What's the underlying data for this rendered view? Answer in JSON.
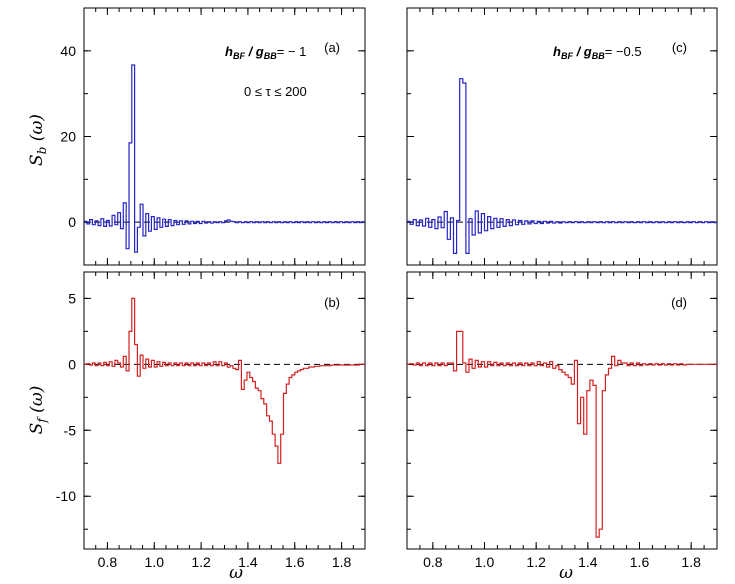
{
  "chart_data": [
    {
      "type": "line",
      "panel": "(a)",
      "annotation": {
        "param": "h",
        "param_sub": "BF",
        "ratio": "g",
        "ratio_sub": "BB",
        "value": "= − 1",
        "range": "0  ≤ τ  ≤ 200"
      },
      "ylabel": {
        "main": "S",
        "sub": "b",
        "arg": "(ω)"
      },
      "xlim": [
        0.7,
        1.9
      ],
      "ylim": [
        -10,
        50
      ],
      "yticks": [
        0,
        20,
        40
      ],
      "xticks": [],
      "color": "#2424c8",
      "step": 0.012,
      "x_start": 0.7,
      "values": [
        0.2,
        -0.4,
        0.6,
        -0.6,
        0.3,
        -0.8,
        0.8,
        -1.0,
        0.4,
        -0.9,
        1.6,
        -0.6,
        2.2,
        -1.5,
        4.5,
        -6.2,
        18.5,
        36.7,
        -7.0,
        -1.2,
        4.2,
        -3.2,
        2.0,
        -2.1,
        1.3,
        -1.7,
        1.0,
        -1.2,
        0.7,
        -1.0,
        0.6,
        -0.8,
        0.4,
        -0.6,
        0.3,
        -0.5,
        0.3,
        -0.4,
        0.2,
        -0.3,
        0.2,
        -0.3,
        0.2,
        -0.2,
        0.1,
        -0.2,
        0.1,
        -0.1,
        0.1,
        -0.1,
        0.3,
        0.5,
        0.2,
        0.1,
        -0.1,
        0.1,
        -0.1,
        0.1,
        -0.1,
        0.1,
        -0.1,
        0.1,
        -0.1,
        0.1,
        -0.1,
        0.1,
        -0.1,
        0.1,
        -0.1,
        0.1,
        -0.1,
        0.1,
        -0.1,
        0.1,
        -0.1,
        0.1,
        -0.1,
        0.1,
        -0.1,
        0.1,
        -0.1,
        0.1,
        -0.1,
        0.1,
        -0.1,
        0.1,
        -0.1,
        0.1,
        -0.1,
        0.1,
        -0.1,
        0.1,
        -0.1,
        0.1,
        -0.1,
        0.1,
        -0.1,
        0.1,
        -0.1,
        0.1
      ]
    },
    {
      "type": "line",
      "panel": "(c)",
      "annotation": {
        "param": "h",
        "param_sub": "BF",
        "ratio": "g",
        "ratio_sub": "BB",
        "value": "= −0.5"
      },
      "xlim": [
        0.7,
        1.9
      ],
      "ylim": [
        -10,
        50
      ],
      "yticks": [
        0,
        20,
        40
      ],
      "xticks": [],
      "color": "#2424c8",
      "step": 0.012,
      "x_start": 0.7,
      "values": [
        0.2,
        -0.5,
        0.6,
        -0.8,
        0.5,
        -0.9,
        0.9,
        -1.2,
        0.6,
        -1.5,
        1.2,
        -1.3,
        2.5,
        -4.0,
        1.0,
        -7.3,
        0.4,
        33.5,
        32.5,
        -7.3,
        0.8,
        -3.0,
        2.6,
        -2.5,
        2.0,
        -2.0,
        1.3,
        -1.5,
        0.9,
        -1.2,
        0.8,
        -1.0,
        0.6,
        -0.8,
        0.5,
        -0.6,
        0.4,
        -0.5,
        0.3,
        -0.4,
        0.3,
        -0.3,
        0.2,
        -0.3,
        0.2,
        -0.2,
        0.2,
        -0.2,
        0.1,
        -0.2,
        0.1,
        -0.1,
        0.1,
        -0.1,
        0.1,
        -0.1,
        0.1,
        -0.1,
        0.1,
        -0.1,
        0.1,
        -0.1,
        0.1,
        -0.1,
        0.1,
        -0.1,
        0.1,
        -0.1,
        0.1,
        -0.1,
        0.1,
        -0.1,
        0.1,
        -0.1,
        0.1,
        -0.1,
        0.1,
        -0.1,
        0.1,
        -0.1,
        0.1,
        -0.1,
        0.1,
        -0.1,
        0.1,
        -0.1,
        0.1,
        -0.1,
        0.1,
        -0.1,
        0.1,
        -0.1,
        0.1,
        -0.1,
        0.1,
        -0.1,
        0.1,
        -0.1,
        0.1,
        -0.1
      ]
    },
    {
      "type": "line",
      "panel": "(b)",
      "ylabel": {
        "main": "S",
        "sub": "f",
        "arg": "(ω)"
      },
      "xlabel": "ω",
      "xlim": [
        0.7,
        1.9
      ],
      "ylim": [
        -14,
        7
      ],
      "yticks": [
        -10,
        -5,
        0,
        5
      ],
      "xticks": [
        0.8,
        1.0,
        1.2,
        1.4,
        1.6,
        1.8
      ],
      "color": "#d42020",
      "step": 0.012,
      "x_start": 0.7,
      "values": [
        0.0,
        0.05,
        -0.05,
        0.1,
        -0.1,
        0.1,
        -0.1,
        0.15,
        -0.1,
        0.2,
        -0.15,
        0.3,
        0.1,
        -0.2,
        0.6,
        -0.5,
        2.5,
        5.0,
        1.5,
        -0.9,
        0.7,
        -0.3,
        0.4,
        -0.2,
        0.3,
        -0.2,
        0.2,
        -0.15,
        0.15,
        -0.1,
        0.1,
        -0.1,
        0.1,
        -0.1,
        0.1,
        -0.1,
        0.1,
        -0.1,
        0.1,
        -0.1,
        0.1,
        -0.1,
        0.1,
        -0.1,
        0.1,
        -0.1,
        0.2,
        -0.1,
        0.2,
        -0.1,
        0.1,
        -0.2,
        -0.1,
        -0.3,
        -0.4,
        0.3,
        -1.9,
        -1.2,
        -0.6,
        -1.0,
        -1.3,
        -1.8,
        -2.0,
        -2.6,
        -3.0,
        -3.9,
        -4.3,
        -5.3,
        -6.2,
        -7.5,
        -5.3,
        -2.2,
        -1.5,
        -1.0,
        -0.8,
        -0.6,
        -0.5,
        -0.4,
        -0.3,
        -0.3,
        -0.2,
        -0.2,
        -0.15,
        -0.15,
        -0.1,
        -0.1,
        -0.1,
        -0.1,
        -0.05,
        -0.05,
        -0.05,
        -0.05,
        -0.05,
        -0.05,
        -0.05,
        -0.05,
        -0.05,
        -0.05,
        0.0,
        0.0
      ]
    },
    {
      "type": "line",
      "panel": "(d)",
      "xlabel": "ω",
      "xlim": [
        0.7,
        1.9
      ],
      "ylim": [
        -14,
        7
      ],
      "yticks": [
        -10,
        -5,
        0,
        5
      ],
      "xticks": [
        0.8,
        1.0,
        1.2,
        1.4,
        1.6,
        1.8
      ],
      "color": "#d42020",
      "step": 0.012,
      "x_start": 0.7,
      "values": [
        0.0,
        0.05,
        -0.05,
        0.1,
        -0.1,
        0.1,
        -0.1,
        0.1,
        -0.1,
        0.1,
        -0.1,
        0.1,
        -0.1,
        0.1,
        0.1,
        -0.5,
        2.5,
        2.5,
        0.1,
        -0.6,
        0.4,
        -0.3,
        0.3,
        -0.2,
        0.2,
        -0.2,
        0.2,
        -0.1,
        0.15,
        -0.1,
        0.1,
        -0.1,
        0.1,
        -0.1,
        0.1,
        -0.1,
        0.1,
        -0.1,
        0.1,
        -0.1,
        0.1,
        -0.1,
        0.2,
        -0.1,
        0.1,
        -0.2,
        0.2,
        -0.3,
        -0.1,
        -0.4,
        -0.6,
        -0.8,
        -1.0,
        -1.5,
        0.3,
        -4.5,
        -2.5,
        -5.3,
        -2.0,
        -1.2,
        -1.6,
        -13.1,
        -12.5,
        -2.0,
        -0.8,
        -0.3,
        0.6,
        -0.1,
        0.3,
        0.1,
        0.1,
        -0.1,
        0.1,
        -0.1,
        0.1,
        -0.1,
        0.05,
        -0.05,
        0.05,
        -0.05,
        0.05,
        -0.05,
        0.05,
        -0.05,
        0.05,
        -0.05,
        0.05,
        -0.05,
        0.05,
        -0.05,
        0.0,
        0.0,
        0.0,
        0.0,
        0.0,
        0.0,
        0.0,
        0.0,
        0.0,
        0.0
      ]
    }
  ]
}
